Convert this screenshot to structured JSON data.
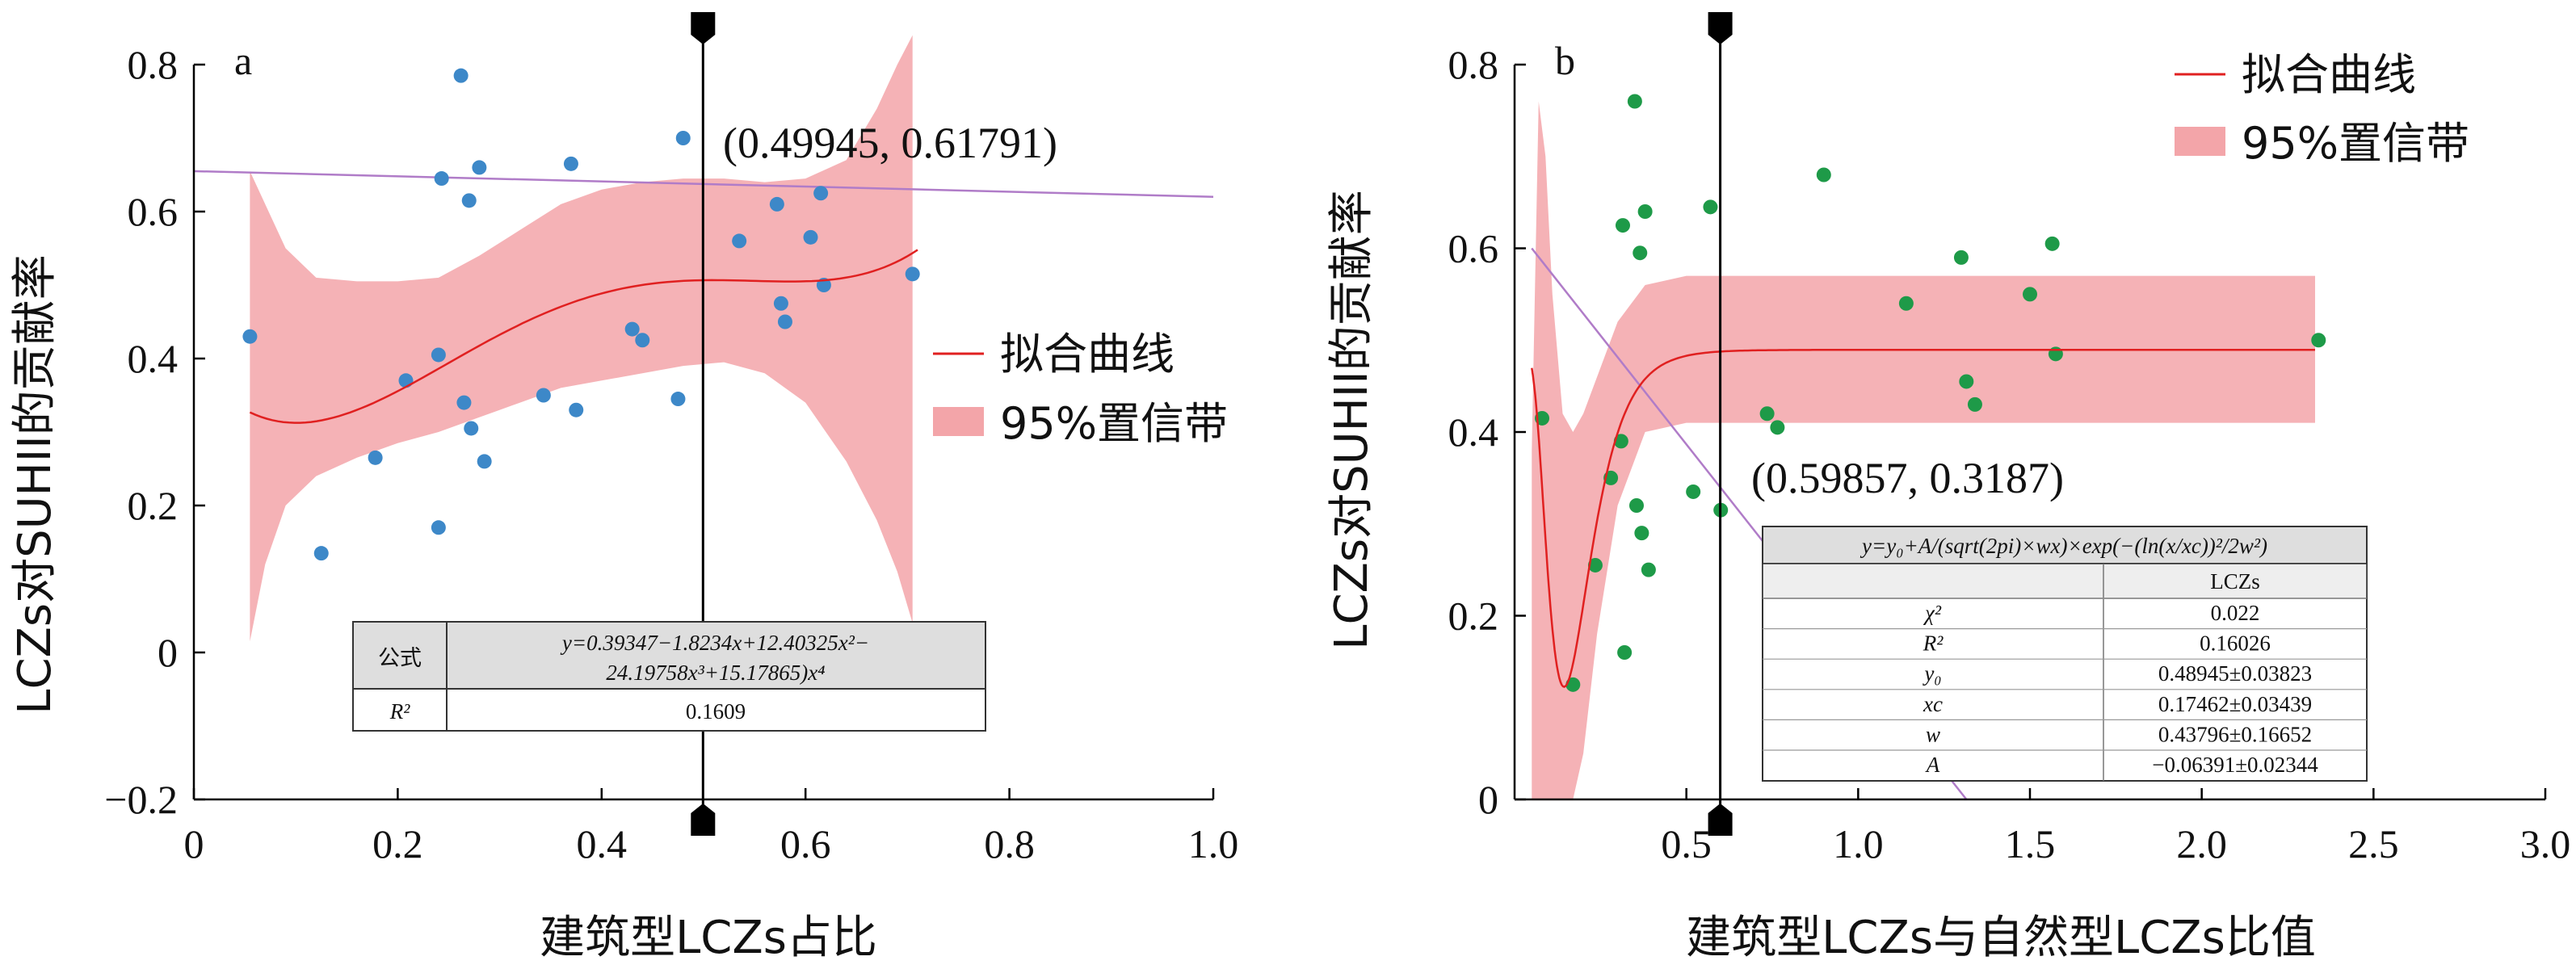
{
  "chart_data": [
    {
      "type": "scatter",
      "panel_label": "a",
      "xlabel": "建筑型LCZs占比",
      "ylabel": "LCZs对SUHII的贡献率",
      "xlim": [
        0,
        1.0
      ],
      "ylim": [
        -0.2,
        0.8
      ],
      "xticks": [
        0,
        0.2,
        0.4,
        0.6,
        0.8,
        1.0
      ],
      "xtick_labels": [
        "0",
        "0.2",
        "0.4",
        "0.6",
        "0.8",
        "1.0"
      ],
      "yticks": [
        -0.2,
        0,
        0.2,
        0.4,
        0.6,
        0.8
      ],
      "ytick_labels": [
        "−0.2",
        "0",
        "0.2",
        "0.4",
        "0.6",
        "0.8"
      ],
      "point_color": "#3d88c8",
      "points": [
        [
          0.055,
          0.43
        ],
        [
          0.125,
          0.135
        ],
        [
          0.178,
          0.265
        ],
        [
          0.208,
          0.37
        ],
        [
          0.24,
          0.405
        ],
        [
          0.24,
          0.17
        ],
        [
          0.243,
          0.645
        ],
        [
          0.262,
          0.785
        ],
        [
          0.265,
          0.34
        ],
        [
          0.27,
          0.615
        ],
        [
          0.272,
          0.305
        ],
        [
          0.28,
          0.66
        ],
        [
          0.285,
          0.26
        ],
        [
          0.343,
          0.35
        ],
        [
          0.37,
          0.665
        ],
        [
          0.375,
          0.33
        ],
        [
          0.43,
          0.44
        ],
        [
          0.44,
          0.425
        ],
        [
          0.475,
          0.345
        ],
        [
          0.48,
          0.7
        ],
        [
          0.535,
          0.56
        ],
        [
          0.572,
          0.61
        ],
        [
          0.576,
          0.475
        ],
        [
          0.58,
          0.45
        ],
        [
          0.605,
          0.565
        ],
        [
          0.615,
          0.625
        ],
        [
          0.618,
          0.5
        ],
        [
          0.705,
          0.515
        ]
      ],
      "fit_color": "#e02020",
      "fit_coefficients": [
        0.39347,
        -1.8234,
        12.40325,
        -24.19758,
        15.17865
      ],
      "fit_range": [
        0.055,
        0.71
      ],
      "band_color": "#f3a5a9",
      "band_points": [
        [
          0.055,
          0.655,
          0.015
        ],
        [
          0.07,
          0.61,
          0.12
        ],
        [
          0.09,
          0.55,
          0.2
        ],
        [
          0.12,
          0.51,
          0.24
        ],
        [
          0.16,
          0.505,
          0.265
        ],
        [
          0.2,
          0.505,
          0.285
        ],
        [
          0.24,
          0.51,
          0.3
        ],
        [
          0.28,
          0.54,
          0.32
        ],
        [
          0.32,
          0.575,
          0.34
        ],
        [
          0.36,
          0.61,
          0.36
        ],
        [
          0.4,
          0.63,
          0.37
        ],
        [
          0.44,
          0.64,
          0.38
        ],
        [
          0.48,
          0.645,
          0.39
        ],
        [
          0.52,
          0.645,
          0.395
        ],
        [
          0.56,
          0.64,
          0.38
        ],
        [
          0.6,
          0.645,
          0.34
        ],
        [
          0.64,
          0.67,
          0.26
        ],
        [
          0.67,
          0.74,
          0.18
        ],
        [
          0.69,
          0.8,
          0.11
        ],
        [
          0.705,
          0.84,
          0.04
        ]
      ],
      "hline": {
        "color": "#b07cc8",
        "points": [
          [
            0,
            0.655
          ],
          [
            1.0,
            0.62
          ]
        ]
      },
      "vline": {
        "x": 0.49945
      },
      "crosshair_label": "(0.49945, 0.61791)",
      "legend": {
        "fit_label": "拟合曲线",
        "band_label": "95%置信带"
      },
      "table": {
        "header": [
          "公式",
          "y=0.39347−1.8234x+12.40325x²−",
          "24.19758x³+15.17865)x⁴"
        ],
        "row": [
          "R²",
          "0.1609"
        ]
      }
    },
    {
      "type": "scatter",
      "panel_label": "b",
      "xlabel": "建筑型LCZs与自然型LCZs比值",
      "ylabel": "LCZs对SUHII的贡献率",
      "xlim": [
        0,
        3.0
      ],
      "ylim": [
        0,
        0.8
      ],
      "xticks": [
        0.5,
        1.0,
        1.5,
        2.0,
        2.5,
        3.0
      ],
      "xtick_labels": [
        "0.5",
        "1.0",
        "1.5",
        "2.0",
        "2.5",
        "3.0"
      ],
      "yticks": [
        0,
        0.2,
        0.4,
        0.6,
        0.8
      ],
      "ytick_labels": [
        "0",
        "0.2",
        "0.4",
        "0.6",
        "0.8"
      ],
      "point_color": "#1e9a48",
      "points": [
        [
          0.08,
          0.415
        ],
        [
          0.17,
          0.125
        ],
        [
          0.235,
          0.255
        ],
        [
          0.28,
          0.35
        ],
        [
          0.31,
          0.39
        ],
        [
          0.315,
          0.625
        ],
        [
          0.32,
          0.16
        ],
        [
          0.35,
          0.76
        ],
        [
          0.355,
          0.32
        ],
        [
          0.365,
          0.595
        ],
        [
          0.37,
          0.29
        ],
        [
          0.38,
          0.64
        ],
        [
          0.39,
          0.25
        ],
        [
          0.52,
          0.335
        ],
        [
          0.57,
          0.645
        ],
        [
          0.6,
          0.315
        ],
        [
          0.735,
          0.42
        ],
        [
          0.765,
          0.405
        ],
        [
          0.9,
          0.68
        ],
        [
          1.14,
          0.54
        ],
        [
          1.3,
          0.59
        ],
        [
          1.315,
          0.455
        ],
        [
          1.34,
          0.43
        ],
        [
          1.5,
          0.55
        ],
        [
          1.565,
          0.605
        ],
        [
          1.575,
          0.485
        ],
        [
          2.34,
          0.5
        ]
      ],
      "fit_color": "#e02020",
      "fit_params": {
        "y0": 0.48945,
        "A": -0.06391,
        "xc": 0.17462,
        "w": 0.43796
      },
      "fit_range": [
        0.05,
        2.33
      ],
      "band_color": "#f3a5a9",
      "band_points": [
        [
          0.05,
          0.38,
          0.0
        ],
        [
          0.07,
          0.76,
          0.0
        ],
        [
          0.09,
          0.7,
          0.0
        ],
        [
          0.11,
          0.55,
          0.0
        ],
        [
          0.14,
          0.42,
          0.0
        ],
        [
          0.17,
          0.4,
          0.0
        ],
        [
          0.2,
          0.42,
          0.05
        ],
        [
          0.24,
          0.46,
          0.18
        ],
        [
          0.3,
          0.52,
          0.32
        ],
        [
          0.38,
          0.56,
          0.4
        ],
        [
          0.5,
          0.57,
          0.41
        ],
        [
          0.7,
          0.57,
          0.41
        ],
        [
          1.0,
          0.57,
          0.41
        ],
        [
          1.5,
          0.57,
          0.41
        ],
        [
          2.0,
          0.57,
          0.41
        ],
        [
          2.33,
          0.57,
          0.41
        ]
      ],
      "hline": {
        "color": "#b07cc8",
        "points": [
          [
            0.05,
            0.6
          ],
          [
            1.4,
            -0.1
          ]
        ]
      },
      "vline": {
        "x": 0.59857
      },
      "crosshair_label": "(0.59857, 0.3187)",
      "legend": {
        "fit_label": "拟合曲线",
        "band_label": "95%置信带"
      },
      "table": {
        "formula": "y=y₀+A/(sqrt(2pi)×wx)×exp(−(ln(x/xc))²/2w²)",
        "column": "LCZs",
        "rows": [
          [
            "χ²",
            "0.022"
          ],
          [
            "R²",
            "0.16026"
          ],
          [
            "y₀",
            "0.48945±0.03823"
          ],
          [
            "xc",
            "0.17462±0.03439"
          ],
          [
            "w",
            "0.43796±0.16652"
          ],
          [
            "A",
            "−0.06391±0.02344"
          ]
        ]
      }
    }
  ]
}
